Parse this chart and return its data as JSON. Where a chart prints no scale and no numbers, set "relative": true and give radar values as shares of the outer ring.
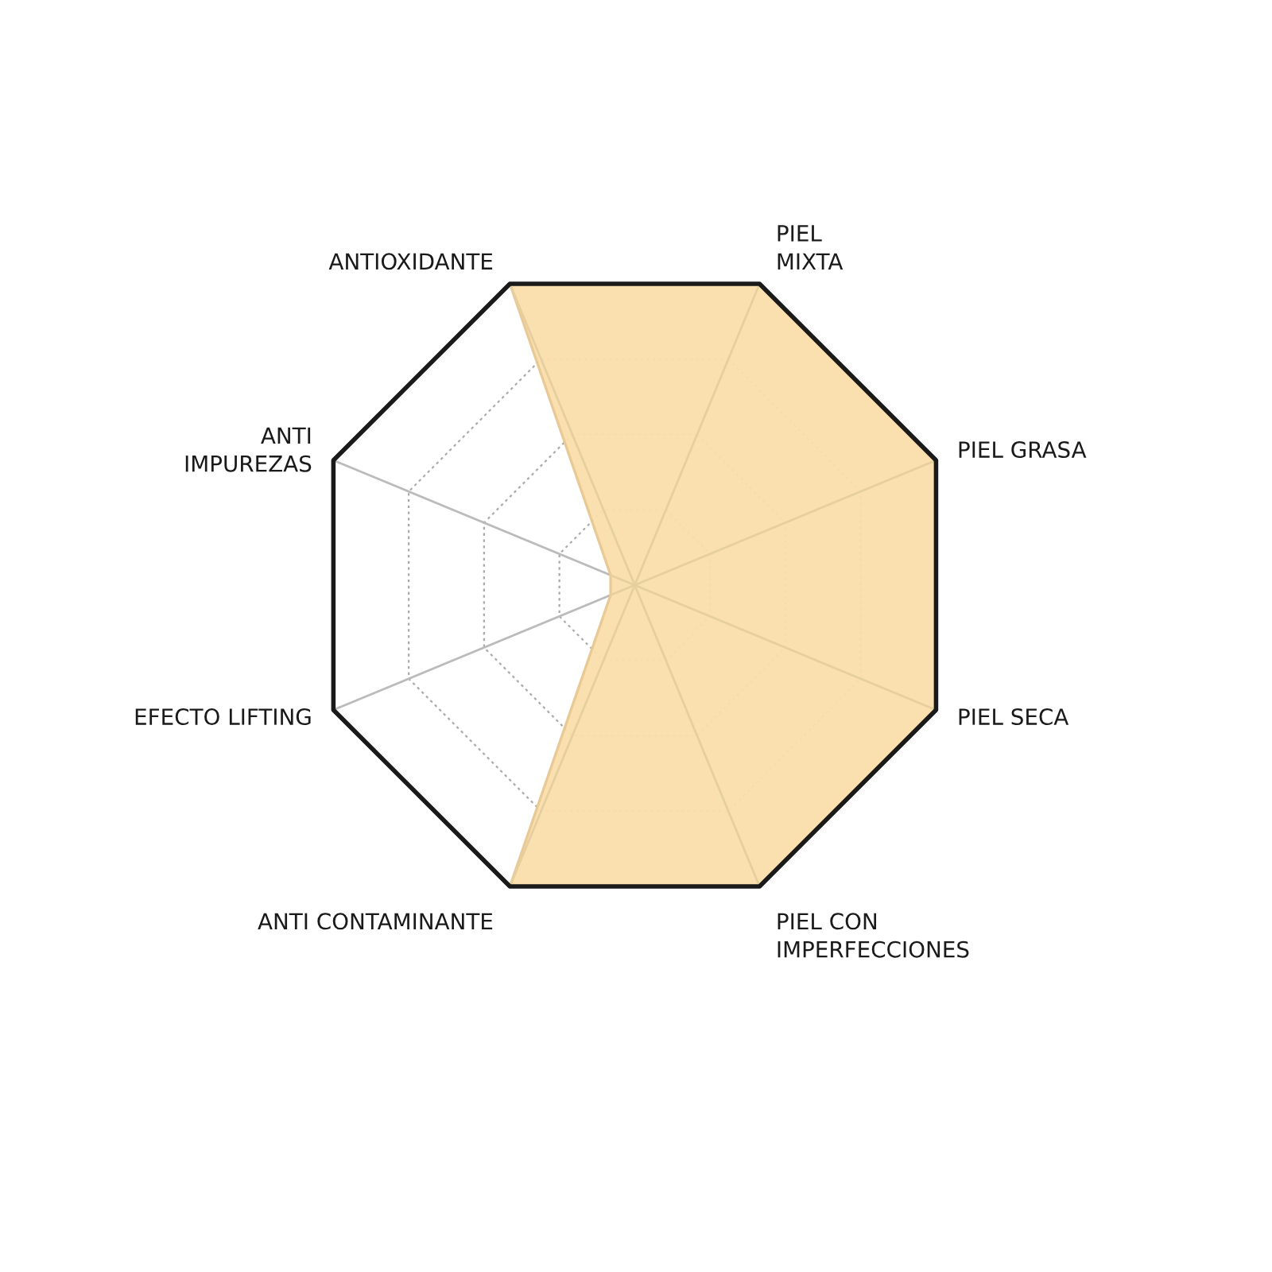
{
  "chart_data": {
    "type": "radar",
    "categories": [
      "PIEL\nMIXTA",
      "PIEL GRASA",
      "PIEL SECA",
      "PIEL CON\nIMPERFECCIONES",
      "ANTI CONTAMINANTE",
      "EFECTO LIFTING",
      "ANTI\nIMPUREZAS",
      "ANTIOXIDANTE"
    ],
    "relative": true,
    "grid": true,
    "series": [
      {
        "color": "#fbdfab",
        "values": [
          1,
          1,
          1,
          1,
          1,
          0.08,
          0.08,
          1
        ]
      }
    ]
  }
}
